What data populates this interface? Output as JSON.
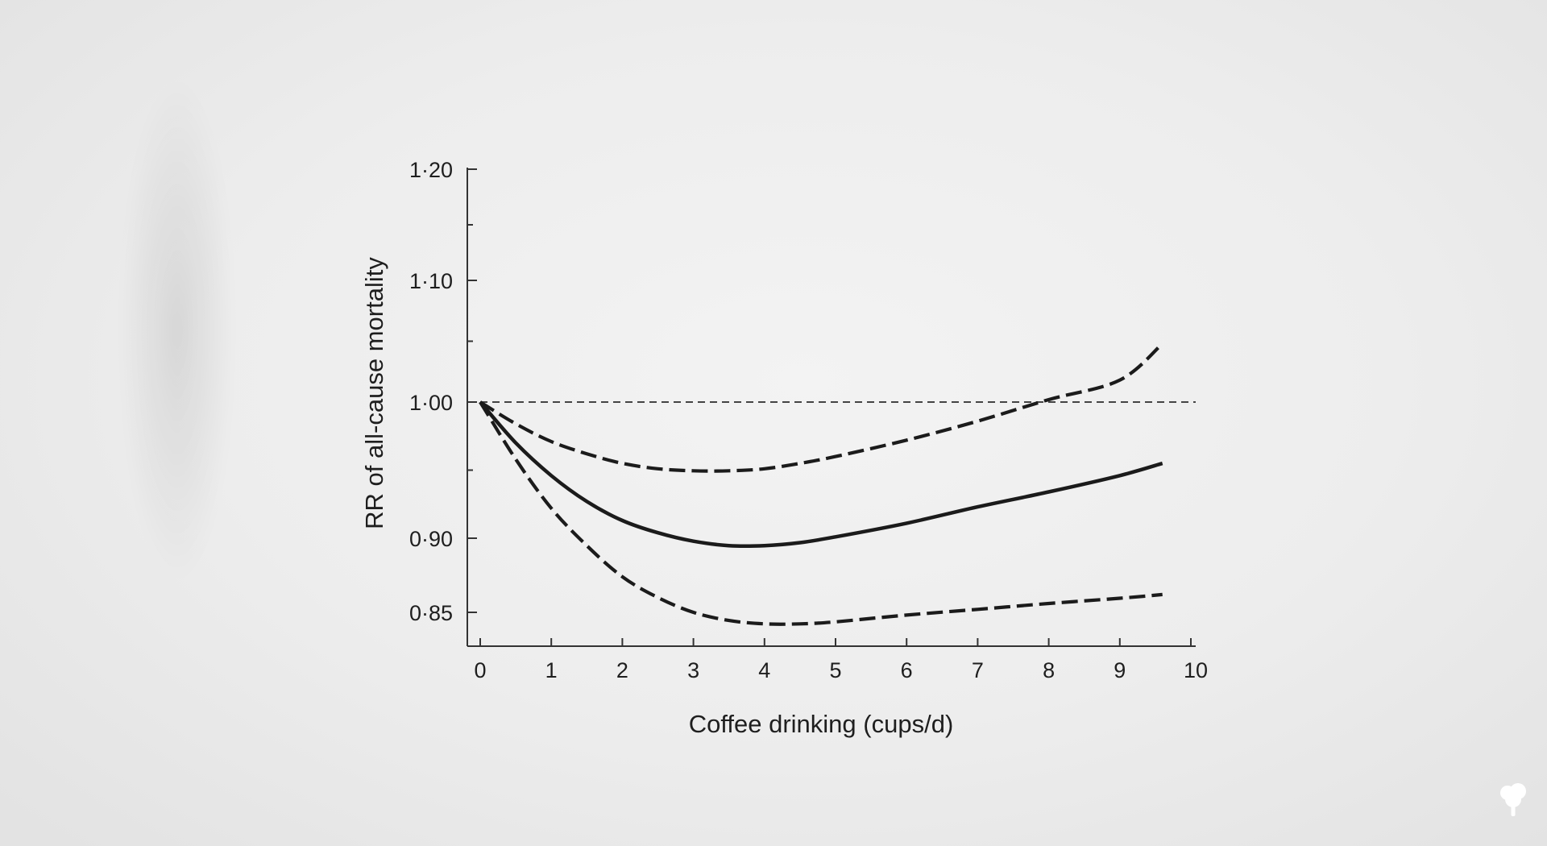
{
  "chart_data": {
    "type": "line",
    "xlabel": "Coffee drinking (cups/d)",
    "ylabel": "RR of all-cause mortality",
    "xlim": [
      0,
      10
    ],
    "ylim": [
      0.825,
      1.2
    ],
    "x_ticks": [
      "0",
      "1",
      "2",
      "3",
      "4",
      "5",
      "6",
      "7",
      "8",
      "9",
      "10"
    ],
    "y_ticks": [
      {
        "value": 0.85,
        "label": "0·85"
      },
      {
        "value": 0.9,
        "label": "0·90"
      },
      {
        "value": 1.0,
        "label": "1·00"
      },
      {
        "value": 1.1,
        "label": "1·10"
      },
      {
        "value": 1.2,
        "label": "1·20"
      }
    ],
    "reference_line": {
      "y": 1.0,
      "style": "dashed"
    },
    "grid": false,
    "series": [
      {
        "role": "upper",
        "style": "dashed",
        "x": [
          0,
          0.5,
          1,
          1.5,
          2,
          2.5,
          3,
          3.5,
          4,
          4.5,
          5,
          6,
          7,
          8,
          9,
          9.6
        ],
        "values": [
          1.0,
          0.984,
          0.971,
          0.962,
          0.955,
          0.951,
          0.9495,
          0.9495,
          0.951,
          0.955,
          0.96,
          0.972,
          0.986,
          1.002,
          1.018,
          1.048
        ]
      },
      {
        "role": "estimate",
        "style": "solid",
        "x": [
          0,
          0.5,
          1,
          1.5,
          2,
          2.5,
          3,
          3.5,
          4,
          4.5,
          5,
          6,
          7,
          8,
          9,
          9.6
        ],
        "values": [
          1.0,
          0.97,
          0.946,
          0.927,
          0.913,
          0.904,
          0.898,
          0.895,
          0.895,
          0.897,
          0.901,
          0.911,
          0.923,
          0.934,
          0.946,
          0.955
        ]
      },
      {
        "role": "lower",
        "style": "dashed",
        "x": [
          0,
          0.5,
          1,
          1.5,
          2,
          2.5,
          3,
          3.5,
          4,
          4.5,
          5,
          6,
          7,
          8,
          9,
          9.6
        ],
        "values": [
          1.0,
          0.958,
          0.922,
          0.895,
          0.874,
          0.86,
          0.85,
          0.844,
          0.8415,
          0.8415,
          0.843,
          0.848,
          0.852,
          0.856,
          0.8595,
          0.862
        ]
      }
    ]
  }
}
